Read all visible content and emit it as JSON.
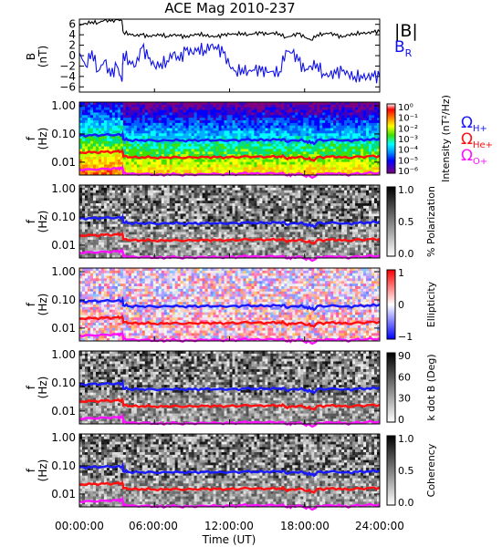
{
  "title": "ACE Mag 2010-237",
  "colors": {
    "bmag": "#000000",
    "br": "#1010e8",
    "h": "#1a1aff",
    "he": "#ff1010",
    "o": "#ff10ff"
  },
  "chart_data": [
    {
      "type": "line",
      "panel": "magnetic-field",
      "title": "ACE Mag 2010-237",
      "ylabel": [
        "B",
        "(nT)"
      ],
      "ylim": [
        -7,
        7
      ],
      "yticks": [
        "6",
        "4",
        "2",
        "0",
        "−2",
        "−4",
        "−6"
      ],
      "ytick_values": [
        6,
        4,
        2,
        0,
        -2,
        -4,
        -6
      ],
      "xlim": [
        0,
        24
      ],
      "xticks": [
        "00:00:00",
        "06:00:00",
        "12:00:00",
        "18:00:00",
        "24:00:00"
      ],
      "xlabel": "Time (UT)",
      "series": [
        {
          "name": "|B|",
          "color": "#000000",
          "x": [
            0,
            0.5,
            1,
            1.5,
            2,
            2.5,
            3,
            3.4,
            3.5,
            4,
            4.5,
            5,
            5.5,
            6,
            6.5,
            7,
            7.5,
            8,
            8.5,
            9,
            9.5,
            10,
            10.5,
            11,
            11.5,
            12,
            12.5,
            13,
            13.5,
            14,
            14.5,
            15,
            15.5,
            16,
            16.5,
            17,
            17.5,
            18,
            18.5,
            19,
            19.5,
            20,
            20.5,
            21,
            21.5,
            22,
            22.5,
            23,
            23.5,
            24
          ],
          "y": [
            5.8,
            6.2,
            6.5,
            6.3,
            6.8,
            6.6,
            6.9,
            6.7,
            4.5,
            4.2,
            3.8,
            4.0,
            3.6,
            3.9,
            4.1,
            3.7,
            4.0,
            3.8,
            3.5,
            3.9,
            4.2,
            4.0,
            3.7,
            3.6,
            3.9,
            4.1,
            4.2,
            4.3,
            4.0,
            4.2,
            4.3,
            4.1,
            4.4,
            4.2,
            3.5,
            3.8,
            4.2,
            3.5,
            3.0,
            4.0,
            4.2,
            4.3,
            3.9,
            3.5,
            4.0,
            4.2,
            4.4,
            4.3,
            4.5,
            4.6
          ]
        },
        {
          "name": "B_R",
          "color": "#1010e8",
          "x": [
            0,
            0.5,
            1,
            1.5,
            2,
            2.5,
            3,
            3.4,
            3.5,
            4,
            4.5,
            5,
            5.5,
            6,
            6.5,
            7,
            7.5,
            8,
            8.5,
            9,
            9.5,
            10,
            10.5,
            11,
            11.5,
            12,
            12.5,
            13,
            13.5,
            14,
            14.5,
            15,
            15.5,
            16,
            16.5,
            17,
            17.5,
            18,
            18.5,
            19,
            19.5,
            20,
            20.5,
            21,
            21.5,
            22,
            22.5,
            23,
            23.5,
            24
          ],
          "y": [
            0.5,
            -2,
            1,
            -3,
            -1,
            -4,
            -2,
            -5,
            0.5,
            -1,
            -2,
            1.5,
            -0.5,
            -2,
            -1.5,
            -1,
            0.5,
            -1,
            1,
            0.5,
            1.5,
            1,
            2,
            1.2,
            0.5,
            -2,
            -3,
            -2.5,
            -3,
            -2.8,
            -3,
            -3.2,
            -3,
            -3.1,
            1,
            0.5,
            -1,
            -3,
            -2,
            -1.5,
            -3.5,
            -3.8,
            -3.5,
            -3,
            -3.5,
            -4,
            -3.8,
            -4.2,
            -4,
            -4.2
          ]
        }
      ]
    },
    {
      "type": "heatmap",
      "panel": "power-spectrum",
      "ylabel": [
        "f",
        "(Hz)"
      ],
      "yticks": [
        "1.00",
        "0.10",
        "0.01"
      ],
      "colorbar": {
        "label": "Intensity (nT²/Hz)",
        "ticks": [
          "10⁰",
          "10⁻¹",
          "10⁻²",
          "10⁻³",
          "10⁻⁴",
          "10⁻⁵",
          "10⁻⁶"
        ],
        "colors": [
          "#ff0000",
          "#ff8000",
          "#ffff00",
          "#80ff00",
          "#00c800",
          "#00ffff",
          "#0090ff",
          "#0000ff",
          "#6000c0",
          "#800080"
        ]
      }
    },
    {
      "type": "heatmap",
      "panel": "polarization",
      "ylabel": [
        "f",
        "(Hz)"
      ],
      "yticks": [
        "1.00",
        "0.10",
        "0.01"
      ],
      "colorbar": {
        "label": "% Polarization",
        "ticks": [
          "1.0",
          "0.5",
          "0.0"
        ],
        "colors": [
          "#000000",
          "#ffffff"
        ]
      }
    },
    {
      "type": "heatmap",
      "panel": "ellipticity",
      "ylabel": [
        "f",
        "(Hz)"
      ],
      "yticks": [
        "1.00",
        "0.10",
        "0.01"
      ],
      "colorbar": {
        "label": "Ellipticity",
        "ticks": [
          "1",
          "0",
          "−1"
        ],
        "colors": [
          "#ff0000",
          "#ffffff",
          "#0000ff"
        ]
      }
    },
    {
      "type": "heatmap",
      "panel": "k-dot-b",
      "ylabel": [
        "f",
        "(Hz)"
      ],
      "yticks": [
        "1.00",
        "0.10",
        "0.01"
      ],
      "colorbar": {
        "label": "k dot B (Deg)",
        "ticks": [
          "90",
          "60",
          "30",
          "0"
        ],
        "colors": [
          "#000000",
          "#ffffff"
        ]
      }
    },
    {
      "type": "heatmap",
      "panel": "coherency",
      "ylabel": [
        "f",
        "(Hz)"
      ],
      "yticks": [
        "1.00",
        "0.10",
        "0.01"
      ],
      "colorbar": {
        "label": "Coherency",
        "ticks": [
          "1.0",
          "0.5",
          "0.0"
        ],
        "colors": [
          "#000000",
          "#ffffff"
        ]
      }
    },
    {
      "type": "line",
      "panel": "gyrofrequencies",
      "ylim_hz": [
        0.0035,
        1.35
      ],
      "series": [
        {
          "name": "Ω_H+",
          "color": "#1a1aff",
          "x": [
            0,
            1,
            2,
            3,
            3.4,
            3.5,
            4,
            5,
            6,
            7,
            8,
            9,
            10,
            11,
            12,
            13,
            14,
            15,
            16,
            16.5,
            17,
            18,
            18.5,
            19,
            20,
            21,
            22,
            23,
            24
          ],
          "y": [
            0.088,
            0.09,
            0.093,
            0.095,
            0.094,
            0.064,
            0.06,
            0.06,
            0.058,
            0.06,
            0.058,
            0.059,
            0.06,
            0.059,
            0.06,
            0.063,
            0.062,
            0.063,
            0.064,
            0.055,
            0.06,
            0.053,
            0.048,
            0.06,
            0.062,
            0.058,
            0.062,
            0.065,
            0.068
          ]
        },
        {
          "name": "Ω_He+",
          "color": "#ff1010",
          "x": [
            0,
            1,
            2,
            3,
            3.4,
            3.5,
            4,
            5,
            6,
            7,
            8,
            9,
            10,
            11,
            12,
            13,
            14,
            15,
            16,
            16.5,
            17,
            18,
            18.5,
            19,
            20,
            21,
            22,
            23,
            24
          ],
          "y": [
            0.022,
            0.0225,
            0.023,
            0.024,
            0.0235,
            0.016,
            0.015,
            0.015,
            0.0145,
            0.015,
            0.0145,
            0.0148,
            0.015,
            0.0148,
            0.015,
            0.0158,
            0.0155,
            0.0158,
            0.016,
            0.0138,
            0.015,
            0.0133,
            0.012,
            0.015,
            0.0155,
            0.0145,
            0.0155,
            0.0163,
            0.017
          ]
        },
        {
          "name": "Ω_O+",
          "color": "#ff10ff",
          "x": [
            0,
            1,
            2,
            3,
            3.4,
            3.5,
            4,
            5,
            6,
            7,
            8,
            9,
            10,
            11,
            12,
            13,
            14,
            15,
            16,
            16.5,
            17,
            18,
            18.5,
            19,
            20,
            21,
            22,
            23,
            24
          ],
          "y": [
            0.0055,
            0.0056,
            0.0058,
            0.006,
            0.0059,
            0.004,
            0.0038,
            0.0038,
            0.0036,
            0.0038,
            0.0036,
            0.0037,
            0.0038,
            0.0037,
            0.0038,
            0.004,
            0.0039,
            0.004,
            0.004,
            0.0035,
            0.0038,
            0.0033,
            0.003,
            0.0038,
            0.0039,
            0.0036,
            0.0039,
            0.0041,
            0.0043
          ]
        }
      ]
    }
  ],
  "legend": {
    "bmag": "|B|",
    "br": "B",
    "br_sub": "R",
    "omega": "Ω",
    "h_sub": "H+",
    "he_sub": "He+",
    "o_sub": "O+"
  }
}
